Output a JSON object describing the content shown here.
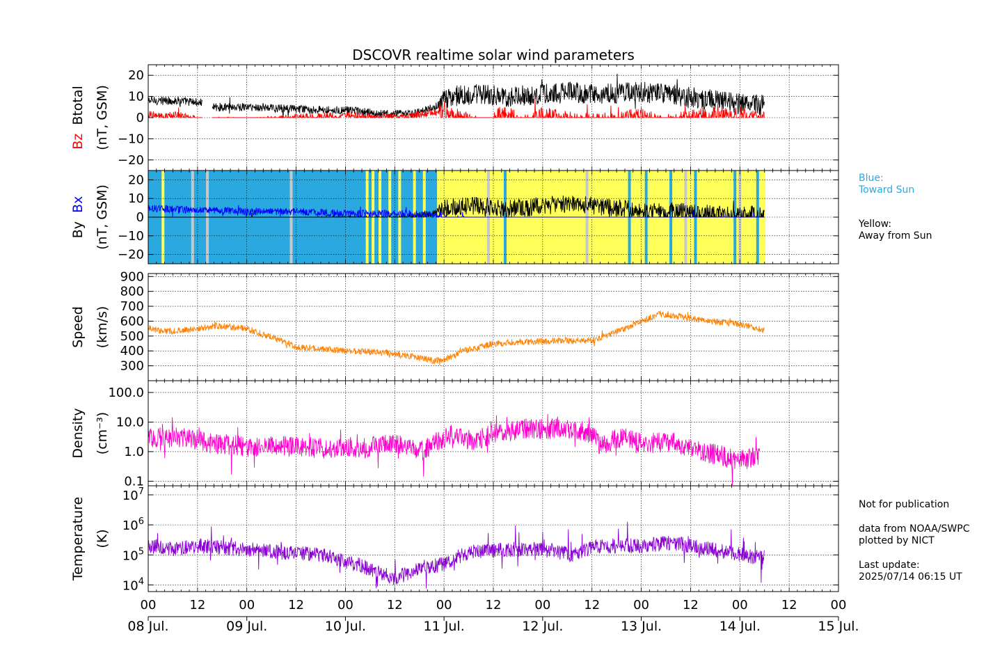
{
  "chart_data": {
    "type": "line",
    "title": "DSCOVR realtime solar wind parameters",
    "x": {
      "hour_ticks": [
        "00",
        "12",
        "00",
        "12",
        "00",
        "12",
        "00",
        "12",
        "00",
        "12",
        "00",
        "12",
        "00",
        "12",
        "00"
      ],
      "day_ticks": [
        "08 Jul.",
        "09 Jul.",
        "10 Jul.",
        "11 Jul.",
        "12 Jul.",
        "13 Jul.",
        "14 Jul.",
        "15 Jul."
      ],
      "range_days": [
        8.0,
        15.0
      ],
      "data_end_day": 14.26
    },
    "panels": [
      {
        "id": "btotal_bz",
        "ylabel_parts": [
          {
            "text": "Bz",
            "color": "#ff0000"
          },
          {
            "text": "  Btotal",
            "color": "#000000"
          }
        ],
        "ylabel2": "(nT, GSM)",
        "ylim": [
          -25,
          25
        ],
        "yticks": [
          20,
          10,
          0,
          -10,
          -20
        ],
        "ytick_labels": [
          "20",
          "10",
          "0",
          "−10",
          "−20"
        ],
        "series": [
          {
            "label": "Btotal",
            "color": "#000000",
            "points": [
              [
                8.0,
                8
              ],
              [
                8.3,
                8
              ],
              [
                8.55,
                7
              ],
              [
                8.6,
                null
              ],
              [
                8.65,
                5
              ],
              [
                9.0,
                5
              ],
              [
                9.5,
                4
              ],
              [
                10.0,
                3.5
              ],
              [
                10.3,
                2
              ],
              [
                10.5,
                1.5
              ],
              [
                10.7,
                2
              ],
              [
                10.85,
                4
              ],
              [
                10.95,
                6
              ],
              [
                11.05,
                10
              ],
              [
                11.3,
                11
              ],
              [
                11.6,
                10
              ],
              [
                12.0,
                11
              ],
              [
                12.3,
                12
              ],
              [
                12.6,
                11
              ],
              [
                13.0,
                12
              ],
              [
                13.3,
                11
              ],
              [
                13.6,
                9
              ],
              [
                13.9,
                7
              ],
              [
                14.1,
                6
              ],
              [
                14.25,
                6
              ]
            ]
          },
          {
            "label": "Bz",
            "color": "#ff0000",
            "points": [
              [
                8.0,
                2
              ],
              [
                8.15,
                0
              ],
              [
                8.3,
                1
              ],
              [
                8.55,
                -2
              ],
              [
                8.6,
                null
              ],
              [
                8.65,
                -1
              ],
              [
                9.0,
                -2
              ],
              [
                9.3,
                -1
              ],
              [
                9.6,
                0
              ],
              [
                10.0,
                1
              ],
              [
                10.3,
                0
              ],
              [
                10.6,
                0
              ],
              [
                10.85,
                2
              ],
              [
                10.95,
                3
              ],
              [
                11.1,
                0
              ],
              [
                11.3,
                -3
              ],
              [
                11.4,
                -8
              ],
              [
                11.6,
                2
              ],
              [
                11.8,
                -4
              ],
              [
                12.0,
                0
              ],
              [
                12.3,
                -2
              ],
              [
                12.5,
                -3
              ],
              [
                12.8,
                -2
              ],
              [
                13.0,
                0
              ],
              [
                13.2,
                -4
              ],
              [
                13.5,
                -1
              ],
              [
                13.8,
                1
              ],
              [
                14.0,
                0
              ],
              [
                14.25,
                -2
              ]
            ]
          }
        ]
      },
      {
        "id": "by_bx",
        "ylabel_parts": [
          {
            "text": "By  ",
            "color": "#000000"
          },
          {
            "text": "Bx",
            "color": "#0000ff"
          }
        ],
        "ylabel2": "(nT, GSM)",
        "ylim": [
          -25,
          25
        ],
        "yticks": [
          20,
          10,
          0,
          -10,
          -20
        ],
        "ytick_labels": [
          "20",
          "10",
          "0",
          "−10",
          "−20"
        ],
        "sector_colors": {
          "toward": "#2aa9e0",
          "away": "#ffff5a",
          "gap": "#c8c8c8"
        },
        "sectors": [
          {
            "from": 8.0,
            "to": 10.93,
            "kind": "toward"
          },
          {
            "from": 10.93,
            "to": 14.26,
            "kind": "away"
          }
        ],
        "sector_marks": [
          {
            "at": 8.15,
            "kind": "away"
          },
          {
            "at": 8.45,
            "kind": "gap"
          },
          {
            "at": 8.6,
            "kind": "gap"
          },
          {
            "at": 9.45,
            "kind": "gap"
          },
          {
            "at": 10.22,
            "kind": "away"
          },
          {
            "at": 10.28,
            "kind": "away"
          },
          {
            "at": 10.35,
            "kind": "away"
          },
          {
            "at": 10.45,
            "kind": "away"
          },
          {
            "at": 10.55,
            "kind": "away"
          },
          {
            "at": 10.7,
            "kind": "away"
          },
          {
            "at": 10.8,
            "kind": "away"
          },
          {
            "at": 11.45,
            "kind": "gap"
          },
          {
            "at": 11.62,
            "kind": "toward"
          },
          {
            "at": 12.45,
            "kind": "gap"
          },
          {
            "at": 12.88,
            "kind": "toward"
          },
          {
            "at": 13.05,
            "kind": "toward"
          },
          {
            "at": 13.3,
            "kind": "toward"
          },
          {
            "at": 13.45,
            "kind": "gap"
          },
          {
            "at": 13.55,
            "kind": "toward"
          },
          {
            "at": 13.95,
            "kind": "toward"
          },
          {
            "at": 14.0,
            "kind": "gap"
          },
          {
            "at": 14.18,
            "kind": "toward"
          }
        ],
        "series": [
          {
            "label": "By",
            "color": "#000000",
            "points": [
              [
                8.0,
                -6
              ],
              [
                8.3,
                -5
              ],
              [
                8.55,
                -4
              ],
              [
                9.0,
                -2
              ],
              [
                9.5,
                -2
              ],
              [
                10.0,
                -1
              ],
              [
                10.5,
                -1
              ],
              [
                10.9,
                2
              ],
              [
                11.0,
                5
              ],
              [
                11.3,
                6
              ],
              [
                11.6,
                4
              ],
              [
                12.0,
                6
              ],
              [
                12.3,
                7
              ],
              [
                12.5,
                6
              ],
              [
                12.8,
                5
              ],
              [
                13.0,
                3
              ],
              [
                13.3,
                3
              ],
              [
                13.6,
                2
              ],
              [
                14.0,
                1
              ],
              [
                14.25,
                1
              ]
            ]
          },
          {
            "label": "Bx",
            "color": "#0000ff",
            "points": [
              [
                8.0,
                5
              ],
              [
                8.3,
                4
              ],
              [
                8.55,
                4
              ],
              [
                9.0,
                3
              ],
              [
                9.5,
                3
              ],
              [
                10.0,
                2
              ],
              [
                10.5,
                2
              ],
              [
                10.9,
                1
              ],
              [
                11.0,
                -3
              ],
              [
                11.3,
                -5
              ],
              [
                11.6,
                -6
              ],
              [
                12.0,
                -7
              ],
              [
                12.3,
                -6
              ],
              [
                12.6,
                -6
              ],
              [
                13.0,
                -5
              ],
              [
                13.5,
                -4
              ],
              [
                14.0,
                -4
              ],
              [
                14.25,
                -4
              ]
            ]
          }
        ]
      },
      {
        "id": "speed",
        "ylabel_parts": [
          {
            "text": "Speed",
            "color": "#000000"
          }
        ],
        "ylabel2": "(km/s)",
        "ylim": [
          200,
          920
        ],
        "yticks": [
          900,
          800,
          700,
          600,
          500,
          400,
          300
        ],
        "ytick_labels": [
          "900",
          "800",
          "700",
          "600",
          "500",
          "400",
          "300"
        ],
        "series": [
          {
            "label": "Speed",
            "color": "#ff8000",
            "points": [
              [
                8.0,
                560
              ],
              [
                8.15,
                530
              ],
              [
                8.4,
                540
              ],
              [
                8.7,
                570
              ],
              [
                9.0,
                550
              ],
              [
                9.3,
                480
              ],
              [
                9.5,
                430
              ],
              [
                9.8,
                410
              ],
              [
                10.0,
                400
              ],
              [
                10.4,
                390
              ],
              [
                10.7,
                360
              ],
              [
                10.9,
                335
              ],
              [
                11.0,
                340
              ],
              [
                11.2,
                400
              ],
              [
                11.5,
                450
              ],
              [
                11.8,
                460
              ],
              [
                12.2,
                470
              ],
              [
                12.5,
                470
              ],
              [
                12.8,
                540
              ],
              [
                13.0,
                600
              ],
              [
                13.2,
                650
              ],
              [
                13.4,
                630
              ],
              [
                13.7,
                600
              ],
              [
                14.0,
                580
              ],
              [
                14.25,
                540
              ]
            ]
          }
        ]
      },
      {
        "id": "density",
        "ylabel_parts": [
          {
            "text": "Density",
            "color": "#000000"
          }
        ],
        "ylabel2": "(cm⁻³)",
        "log": true,
        "ylim": [
          0.07,
          250
        ],
        "yticks": [
          100,
          10,
          1,
          0.1
        ],
        "ytick_labels": [
          "100.0",
          "10.0",
          "1.0",
          "0.1"
        ],
        "series": [
          {
            "label": "Density",
            "color": "#ff00cc",
            "points": [
              [
                8.0,
                3
              ],
              [
                8.2,
                3
              ],
              [
                8.4,
                3
              ],
              [
                8.6,
                2
              ],
              [
                9.0,
                1.5
              ],
              [
                9.4,
                1.5
              ],
              [
                9.8,
                1.3
              ],
              [
                10.0,
                1.5
              ],
              [
                10.2,
                1.3
              ],
              [
                10.5,
                2
              ],
              [
                10.8,
                1
              ],
              [
                10.95,
                2.5
              ],
              [
                11.1,
                4
              ],
              [
                11.3,
                2
              ],
              [
                11.5,
                4
              ],
              [
                11.8,
                6
              ],
              [
                12.1,
                6
              ],
              [
                12.4,
                5
              ],
              [
                12.6,
                1.5
              ],
              [
                12.8,
                3
              ],
              [
                13.0,
                2
              ],
              [
                13.3,
                2
              ],
              [
                13.6,
                1
              ],
              [
                14.0,
                0.5
              ],
              [
                14.2,
                0.7
              ]
            ]
          }
        ]
      },
      {
        "id": "temperature",
        "ylabel_parts": [
          {
            "text": "Temperature",
            "color": "#000000"
          }
        ],
        "ylabel2": "(K)",
        "log": true,
        "ylim": [
          6000,
          20000000
        ],
        "yticks": [
          10000000,
          1000000,
          100000,
          10000
        ],
        "ytick_labels": [
          [
            "10",
            "7"
          ],
          [
            "10",
            "6"
          ],
          [
            "10",
            "5"
          ],
          [
            "10",
            "4"
          ]
        ],
        "series": [
          {
            "label": "Temperature",
            "color": "#8a00d4",
            "points": [
              [
                8.0,
                200000
              ],
              [
                8.3,
                150000
              ],
              [
                8.5,
                200000
              ],
              [
                9.0,
                150000
              ],
              [
                9.4,
                120000
              ],
              [
                9.8,
                100000
              ],
              [
                10.0,
                60000
              ],
              [
                10.3,
                30000
              ],
              [
                10.5,
                15000
              ],
              [
                10.7,
                30000
              ],
              [
                11.0,
                50000
              ],
              [
                11.3,
                130000
              ],
              [
                11.7,
                150000
              ],
              [
                12.0,
                150000
              ],
              [
                12.3,
                100000
              ],
              [
                12.6,
                200000
              ],
              [
                13.0,
                200000
              ],
              [
                13.3,
                250000
              ],
              [
                13.7,
                150000
              ],
              [
                14.0,
                100000
              ],
              [
                14.25,
                80000
              ]
            ]
          }
        ]
      }
    ]
  },
  "side_notes": {
    "blue_line1": "Blue:",
    "blue_line2": "Toward Sun",
    "yellow_line1": "Yellow:",
    "yellow_line2": "Away from Sun",
    "not_for_pub": "Not for publication",
    "data_from": "data from NOAA/SWPC",
    "plotted_by": "plotted by NICT",
    "last_update_label": "Last update:",
    "last_update_value": "2025/07/14 06:15 UT"
  }
}
